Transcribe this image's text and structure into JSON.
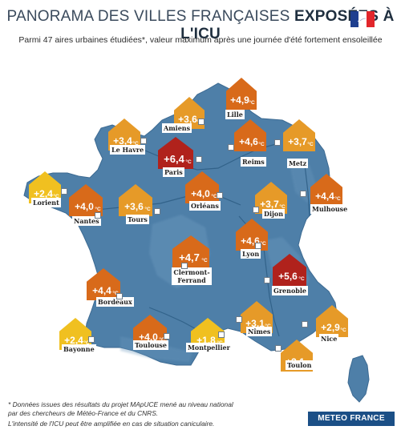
{
  "header": {
    "title_light": "PANORAMA DES VILLES FRANÇAISES ",
    "title_bold": "EXPOSÉES À L'ICU",
    "subtitle": "Parmi 47 aires urbaines étudiées*, valeur maximum après une journée d'été fortement ensoleillée"
  },
  "map": {
    "unit": "°C",
    "colors": {
      "land": "#4e7fa8",
      "land_light": "#6b98bd",
      "rivers": "#2f5f86",
      "yellow": "#f0c020",
      "amber": "#e69a28",
      "orange": "#d86a1a",
      "red": "#b0221c"
    },
    "cities": [
      {
        "name": "Lille",
        "value": "+4,9"
      },
      {
        "name": "Amiens",
        "value": "+3,6"
      },
      {
        "name": "Le Havre",
        "value": "+3,4"
      },
      {
        "name": "Paris",
        "value": "+6,4"
      },
      {
        "name": "Reims",
        "value": "+4,6"
      },
      {
        "name": "Metz",
        "value": "+3,7"
      },
      {
        "name": "Lorient",
        "value": "+2,4"
      },
      {
        "name": "Nantes",
        "value": "+4,0"
      },
      {
        "name": "Tours",
        "value": "+3,6"
      },
      {
        "name": "Orléans",
        "value": "+4,0"
      },
      {
        "name": "Dijon",
        "value": "+3,7"
      },
      {
        "name": "Mulhouse",
        "value": "+4,4"
      },
      {
        "name": "Lyon",
        "value": "+4,6"
      },
      {
        "name": "Clermont-Ferrand",
        "value": "+4,7"
      },
      {
        "name": "Grenoble",
        "value": "+5,6"
      },
      {
        "name": "Bordeaux",
        "value": "+4,4"
      },
      {
        "name": "Nîmes",
        "value": "+3,1"
      },
      {
        "name": "Nice",
        "value": "+2,9"
      },
      {
        "name": "Bayonne",
        "value": "+2,4"
      },
      {
        "name": "Toulouse",
        "value": "+4,0"
      },
      {
        "name": "Montpellier",
        "value": "+1,8"
      },
      {
        "name": "Toulon",
        "value": "+3,1"
      }
    ]
  },
  "footer": {
    "note_line1": "* Données issues des résultats du projet MApUCE mené au niveau national",
    "note_line2": "par des chercheurs de Météo-France et du CNRS.",
    "note_line3": "L'intensité de l'ICU peut être amplifiée en cas de situation caniculaire.",
    "brand": "METEO FRANCE"
  }
}
